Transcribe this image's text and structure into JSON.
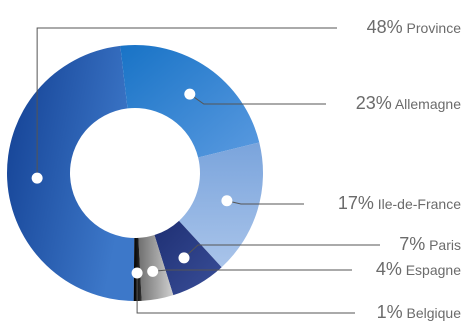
{
  "chart_data": {
    "type": "pie",
    "style": "donut",
    "slices": [
      {
        "label": "Province",
        "value": 48,
        "value_text": "48%",
        "color": "#2b5fae"
      },
      {
        "label": "Allemagne",
        "value": 23,
        "value_text": "23%",
        "color": "#3f86d3"
      },
      {
        "label": "Ile-de-France",
        "value": 17,
        "value_text": "17%",
        "color": "#8eb1e2"
      },
      {
        "label": "Paris",
        "value": 7,
        "value_text": "7%",
        "color": "#2c3f84"
      },
      {
        "label": "Espagne",
        "value": 4,
        "value_text": "4%",
        "color": "#a0a0a0"
      },
      {
        "label": "Belgique",
        "value": 1,
        "value_text": "1%",
        "color": "#111111"
      }
    ],
    "leader_line_color": "#555555",
    "label_color": "#6b6b6b",
    "marker_color": "#ffffff"
  }
}
